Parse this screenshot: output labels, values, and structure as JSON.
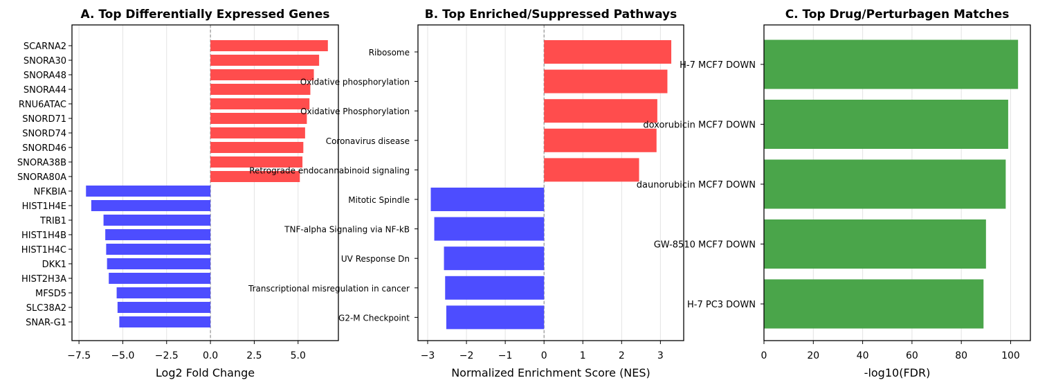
{
  "chart_data": [
    {
      "type": "bar",
      "orientation": "horizontal",
      "title": "A. Top Differentially Expressed Genes",
      "xlabel": "Log2 Fold Change",
      "ylabel": "",
      "xlim": [
        -7.9,
        7.3
      ],
      "xticks": [
        -7.5,
        -5.0,
        -2.5,
        0.0,
        2.5,
        5.0
      ],
      "xtick_labels": [
        "−7.5",
        "−5.0",
        "−2.5",
        "0.0",
        "2.5",
        "5.0"
      ],
      "grid": "vertical",
      "zero_line": true,
      "colors": {
        "up": "#ff4d4d",
        "down": "#4d4dff"
      },
      "categories": [
        "SCARNA2",
        "SNORA30",
        "SNORA48",
        "SNORA44",
        "RNU6ATAC",
        "SNORD71",
        "SNORD74",
        "SNORD46",
        "SNORA38B",
        "SNORA80A",
        "NFKBIA",
        "HIST1H4E",
        "TRIB1",
        "HIST1H4B",
        "HIST1H4C",
        "DKK1",
        "HIST2H3A",
        "MFSD5",
        "SLC38A2",
        "SNAR-G1"
      ],
      "values": [
        6.7,
        6.2,
        5.9,
        5.7,
        5.65,
        5.5,
        5.4,
        5.3,
        5.25,
        5.1,
        -7.1,
        -6.8,
        -6.1,
        -6.0,
        -5.95,
        -5.9,
        -5.8,
        -5.35,
        -5.3,
        -5.2
      ]
    },
    {
      "type": "bar",
      "orientation": "horizontal",
      "title": "B. Top Enriched/Suppressed Pathways",
      "xlabel": "Normalized Enrichment Score (NES)",
      "ylabel": "",
      "xlim": [
        -3.25,
        3.6
      ],
      "xticks": [
        -3,
        -2,
        -1,
        0,
        1,
        2,
        3
      ],
      "xtick_labels": [
        "−3",
        "−2",
        "−1",
        "0",
        "1",
        "2",
        "3"
      ],
      "grid": "vertical",
      "zero_line": true,
      "colors": {
        "up": "#ff4d4d",
        "down": "#4d4dff"
      },
      "categories": [
        "Ribosome",
        "Oxidative phosphorylation",
        "Oxidative Phosphorylation",
        "Coronavirus disease",
        "Retrograde endocannabinoid signaling",
        "Mitotic Spindle",
        "TNF-alpha Signaling via NF-kB",
        "UV Response Dn",
        "Transcriptional misregulation in cancer",
        "G2-M Checkpoint"
      ],
      "values": [
        3.28,
        3.18,
        2.92,
        2.9,
        2.45,
        -2.92,
        -2.83,
        -2.58,
        -2.55,
        -2.52
      ]
    },
    {
      "type": "bar",
      "orientation": "horizontal",
      "title": "C. Top Drug/Perturbagen Matches",
      "xlabel": "-log10(FDR)",
      "ylabel": "",
      "xlim": [
        0,
        108
      ],
      "xticks": [
        0,
        20,
        40,
        60,
        80,
        100
      ],
      "xtick_labels": [
        "0",
        "20",
        "40",
        "60",
        "80",
        "100"
      ],
      "grid": "vertical",
      "zero_line": false,
      "colors": {
        "bar": "#4aa54a"
      },
      "categories": [
        "H-7 MCF7 DOWN",
        "doxorubicin MCF7 DOWN",
        "daunorubicin MCF7 DOWN",
        "GW-8510 MCF7 DOWN",
        "H-7 PC3 DOWN"
      ],
      "values": [
        103,
        99,
        98,
        90,
        89
      ]
    }
  ]
}
